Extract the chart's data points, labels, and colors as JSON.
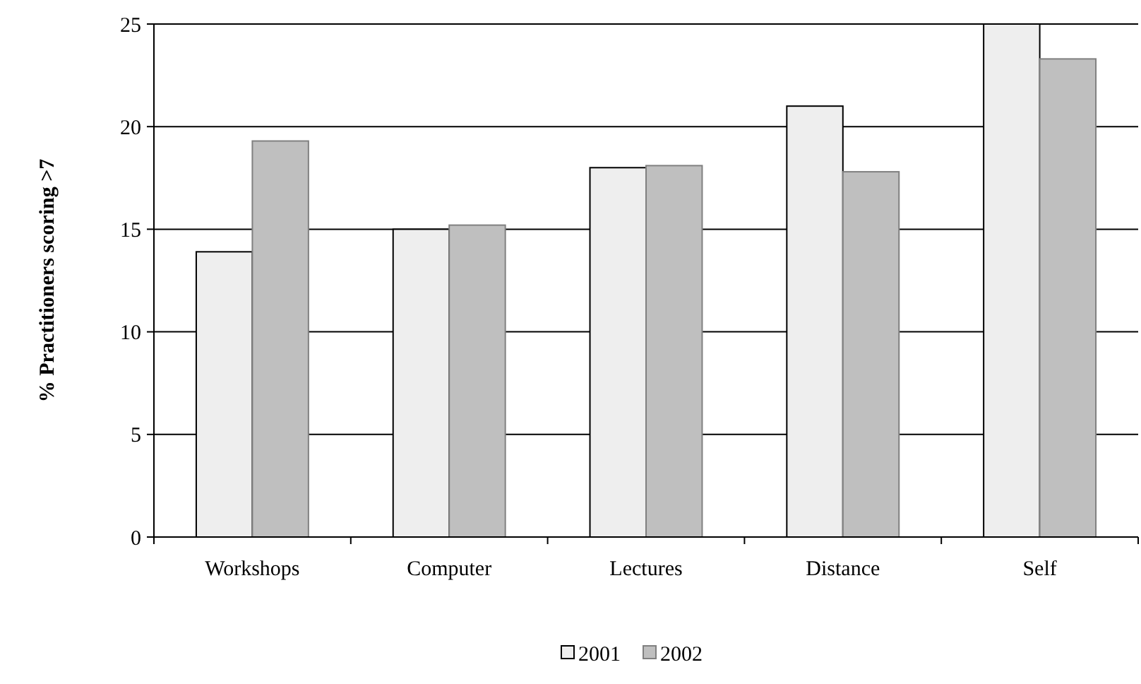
{
  "chart_data": {
    "type": "bar",
    "ylabel": "% Practitioners scoring >7",
    "categories": [
      "Workshops",
      "Computer",
      "Lectures",
      "Distance",
      "Self"
    ],
    "series": [
      {
        "name": "2001",
        "color": "#eeeeee",
        "values": [
          13.9,
          15.0,
          18.0,
          21.0,
          25.0
        ]
      },
      {
        "name": "2002",
        "color": "#bfbfbf",
        "values": [
          19.3,
          15.2,
          18.1,
          17.8,
          23.3
        ]
      }
    ],
    "ylim": [
      0,
      25
    ],
    "yticks": [
      0,
      5,
      10,
      15,
      20,
      25
    ],
    "grid": "y",
    "legend": "bottom"
  }
}
